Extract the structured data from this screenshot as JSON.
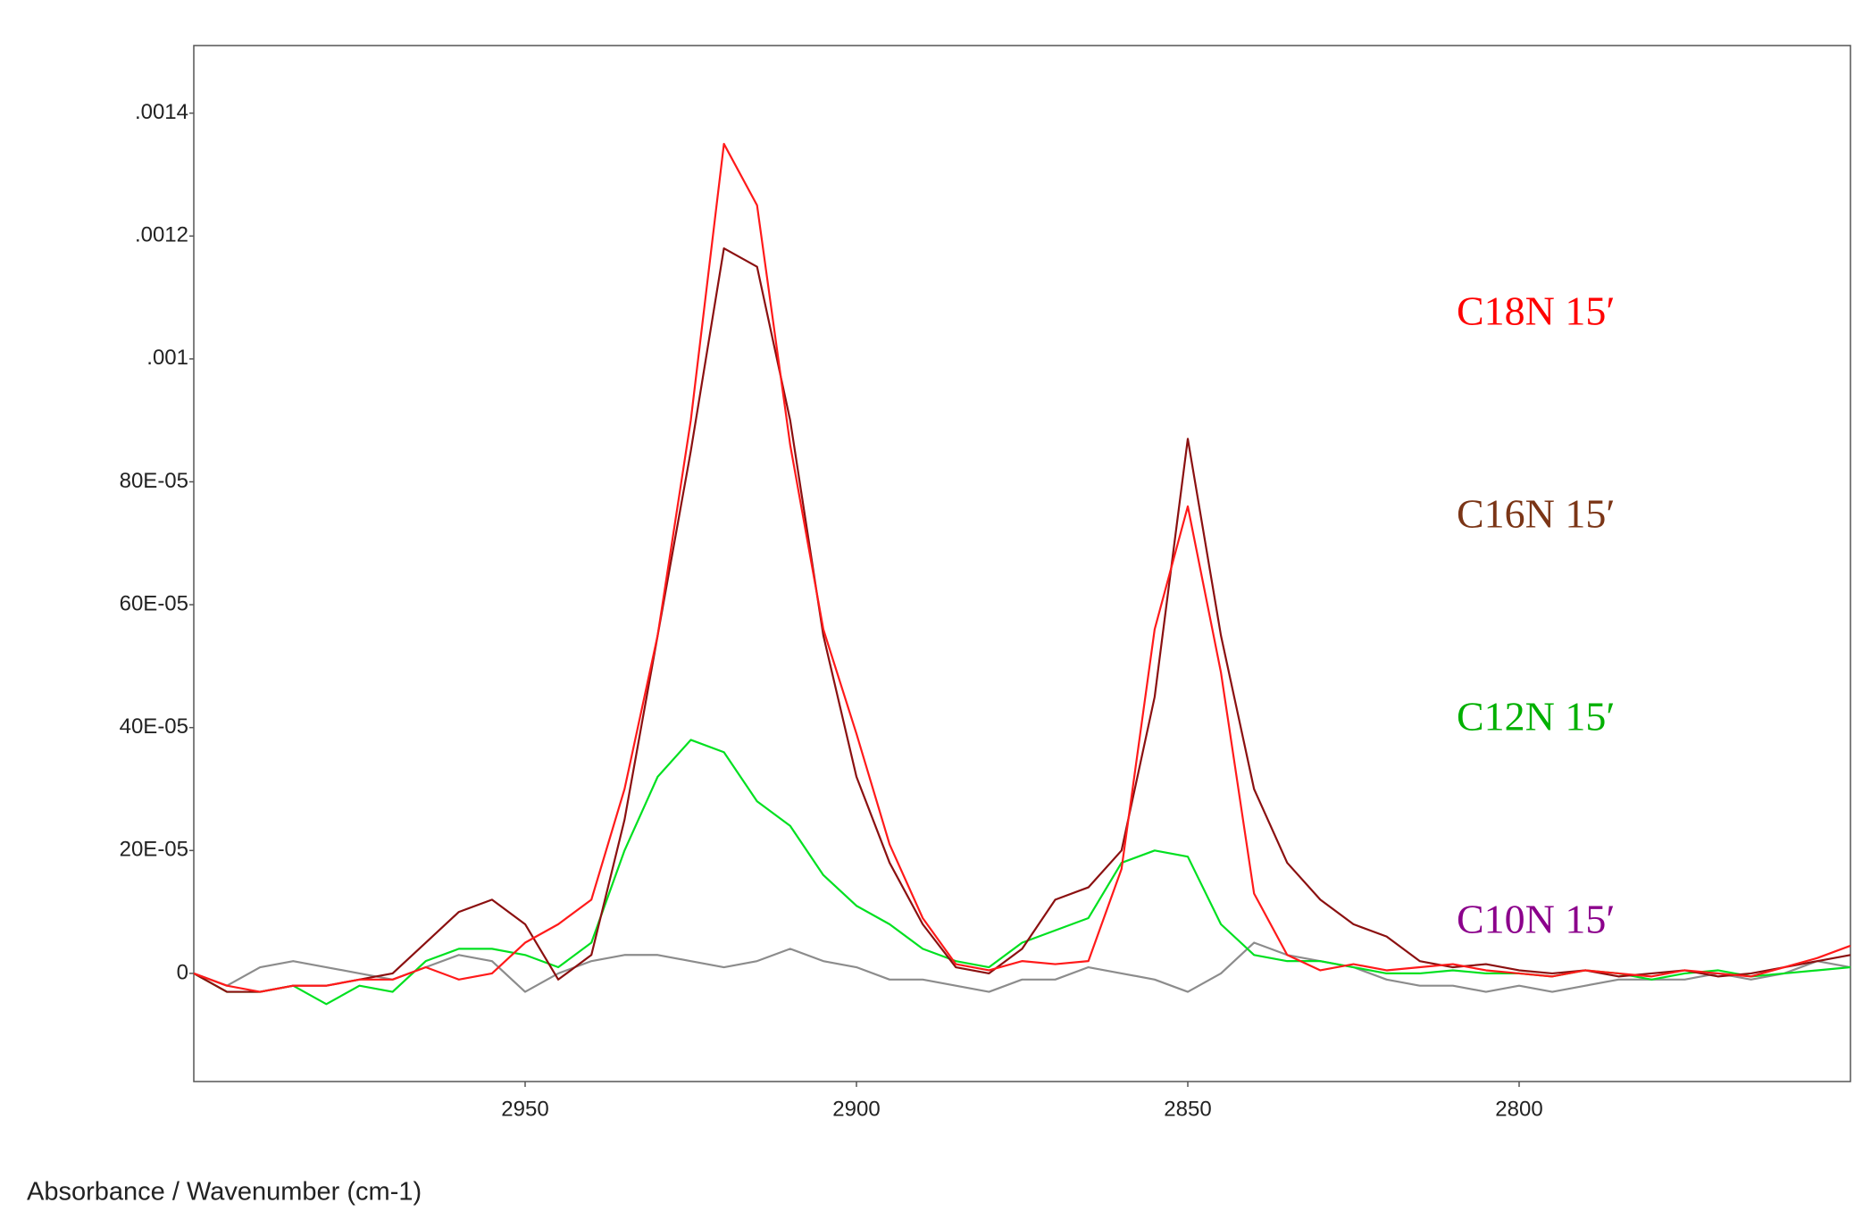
{
  "chart_data": {
    "type": "line",
    "x_label": "Absorbance / Wavenumber (cm-1)",
    "x": [
      3000,
      2995,
      2990,
      2985,
      2980,
      2975,
      2970,
      2965,
      2960,
      2955,
      2950,
      2945,
      2940,
      2935,
      2930,
      2925,
      2920,
      2915,
      2910,
      2905,
      2900,
      2895,
      2890,
      2885,
      2880,
      2875,
      2870,
      2865,
      2860,
      2855,
      2850,
      2845,
      2840,
      2835,
      2830,
      2825,
      2820,
      2815,
      2810,
      2805,
      2800,
      2795,
      2790,
      2785,
      2780,
      2775,
      2770,
      2765,
      2760,
      2755,
      2750
    ],
    "series": [
      {
        "name": "C18N 15′",
        "color": "#ff1a1a",
        "label_color": "#ff0000",
        "values": [
          0,
          -2e-05,
          -3e-05,
          -2e-05,
          -2e-05,
          -1e-05,
          -1e-05,
          1e-05,
          -1e-05,
          0,
          5e-05,
          8e-05,
          0.00012,
          0.0003,
          0.00055,
          0.0009,
          0.00135,
          0.00125,
          0.00086,
          0.00056,
          0.00039,
          0.00021,
          9e-05,
          1.5e-05,
          5e-06,
          2e-05,
          1.5e-05,
          2e-05,
          0.00017,
          0.00056,
          0.00076,
          0.00049,
          0.00013,
          3e-05,
          5e-06,
          1.5e-05,
          5e-06,
          1e-05,
          1.5e-05,
          5e-06,
          0,
          -5e-06,
          5e-06,
          0,
          -5e-06,
          5e-06,
          0,
          -5e-06,
          1e-05,
          2.5e-05,
          4.5e-05
        ]
      },
      {
        "name": "C16N 15′",
        "color": "#8b1010",
        "label_color": "#7b3516",
        "values": [
          0,
          -3e-05,
          -3e-05,
          -2e-05,
          -2e-05,
          -1e-05,
          0,
          5e-05,
          0.0001,
          0.00012,
          8e-05,
          -1e-05,
          3e-05,
          0.00025,
          0.00055,
          0.00085,
          0.00118,
          0.00115,
          0.0009,
          0.00055,
          0.00032,
          0.00018,
          8e-05,
          1e-05,
          0,
          4e-05,
          0.00012,
          0.00014,
          0.0002,
          0.00045,
          0.00087,
          0.00055,
          0.0003,
          0.00018,
          0.00012,
          8e-05,
          6e-05,
          2e-05,
          1e-05,
          1.5e-05,
          5e-06,
          0,
          5e-06,
          -5e-06,
          0,
          5e-06,
          -5e-06,
          0,
          1e-05,
          2e-05,
          3e-05
        ]
      },
      {
        "name": "C12N 15′",
        "color": "#00e020",
        "label_color": "#00b000",
        "values": [
          0,
          -3e-05,
          -3e-05,
          -2e-05,
          -5e-05,
          -2e-05,
          -3e-05,
          2e-05,
          4e-05,
          4e-05,
          3e-05,
          1e-05,
          5e-05,
          0.0002,
          0.00032,
          0.00038,
          0.00036,
          0.00028,
          0.00024,
          0.00016,
          0.00011,
          8e-05,
          4e-05,
          2e-05,
          1e-05,
          5e-05,
          7e-05,
          9e-05,
          0.00018,
          0.0002,
          0.00019,
          8e-05,
          3e-05,
          2e-05,
          2e-05,
          1e-05,
          0,
          0,
          5e-06,
          0,
          0,
          -5e-06,
          5e-06,
          0,
          -1e-05,
          0,
          5e-06,
          -5e-06,
          0,
          5e-06,
          1e-05
        ]
      },
      {
        "name": "C10N 15′",
        "color": "#8c8c8c",
        "label_color": "#8b008b",
        "values": [
          0,
          -2e-05,
          1e-05,
          2e-05,
          1e-05,
          0,
          -1e-05,
          1e-05,
          3e-05,
          2e-05,
          -3e-05,
          0,
          2e-05,
          3e-05,
          3e-05,
          2e-05,
          1e-05,
          2e-05,
          4e-05,
          2e-05,
          1e-05,
          -1e-05,
          -1e-05,
          -2e-05,
          -3e-05,
          -1e-05,
          -1e-05,
          1e-05,
          0,
          -1e-05,
          -3e-05,
          0,
          5e-05,
          3e-05,
          2e-05,
          1e-05,
          -1e-05,
          -2e-05,
          -2e-05,
          -3e-05,
          -2e-05,
          -3e-05,
          -2e-05,
          -1e-05,
          -1e-05,
          -1e-05,
          0,
          -1e-05,
          0,
          2e-05,
          1e-05
        ]
      }
    ],
    "xlim": [
      3000,
      2750
    ],
    "xticks": [
      2950,
      2900,
      2850,
      2800
    ],
    "ylim": [
      -0.000176,
      0.00151
    ],
    "yticks": [
      0,
      {
        "value": 0.0002,
        "label": "20E-05"
      },
      {
        "value": 0.0004,
        "label": "40E-05"
      },
      {
        "value": 0.0006,
        "label": "60E-05"
      },
      {
        "value": 0.0008,
        "label": "80E-05"
      },
      {
        "value": 0.001,
        "label": ".001"
      },
      {
        "value": 0.0012,
        "label": ".0012"
      },
      {
        "value": 0.0014,
        "label": ".0014"
      }
    ],
    "grid": false
  }
}
